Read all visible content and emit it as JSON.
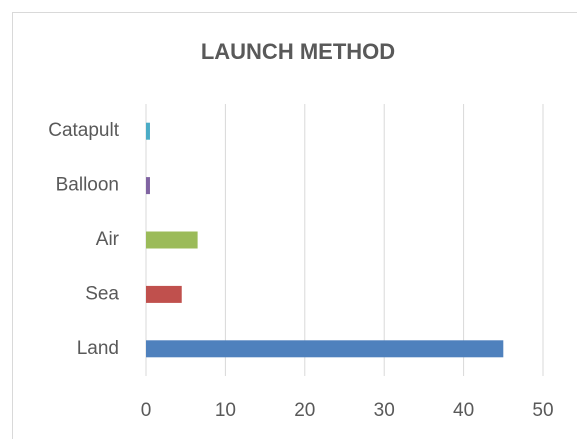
{
  "chart_data": {
    "type": "bar",
    "orientation": "horizontal",
    "title": "LAUNCH METHOD",
    "categories": [
      "Land",
      "Sea",
      "Air",
      "Balloon",
      "Catapult"
    ],
    "values": [
      45,
      4.5,
      6.5,
      0.5,
      0.5
    ],
    "colors": [
      "#4f81bd",
      "#c0504d",
      "#9bbb59",
      "#8064a2",
      "#4bacc6"
    ],
    "xlim": [
      0,
      50
    ],
    "xticks": [
      0,
      10,
      20,
      30,
      40,
      50
    ],
    "grid": true
  }
}
